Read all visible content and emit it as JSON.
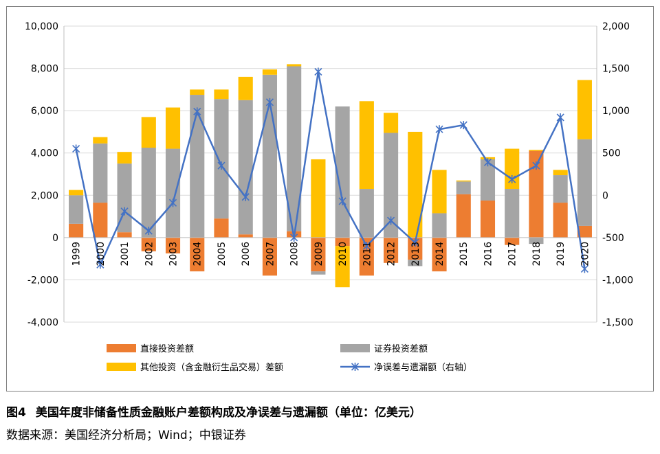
{
  "figure": {
    "number": "图4",
    "caption": "美国年度非储备性质金融账户差额构成及净误差与遗漏额（单位：亿美元）",
    "source": "数据来源：美国经济分析局；Wind；中银证券"
  },
  "colors": {
    "direct": "#ed7d31",
    "portfolio": "#a5a5a5",
    "other": "#ffc000",
    "errors": "#4472c4",
    "grid": "#d9d9d9",
    "axis": "#bfbfbf"
  },
  "chart_data": {
    "type": "bar",
    "stacked": true,
    "categories": [
      "1999",
      "2000",
      "2001",
      "2002",
      "2003",
      "2004",
      "2005",
      "2006",
      "2007",
      "2008",
      "2009",
      "2010",
      "2011",
      "2012",
      "2013",
      "2014",
      "2015",
      "2016",
      "2017",
      "2018",
      "2019",
      "2020"
    ],
    "series": [
      {
        "name": "直接投资差额",
        "axis": "left",
        "type": "bar",
        "values": [
          650,
          1650,
          250,
          -650,
          -750,
          -1600,
          900,
          150,
          -1800,
          300,
          -1600,
          -400,
          -1800,
          -1200,
          -1050,
          -1600,
          2050,
          1750,
          -350,
          4100,
          1650,
          550
        ]
      },
      {
        "name": "证券投资差额",
        "axis": "left",
        "type": "bar",
        "values": [
          1350,
          2800,
          3250,
          4250,
          4200,
          6750,
          5650,
          6350,
          7700,
          7800,
          -150,
          6200,
          2300,
          4950,
          -300,
          1150,
          600,
          1950,
          2300,
          -300,
          1300,
          4100
        ]
      },
      {
        "name": "其他投资（含金融衍生品交易）差额",
        "axis": "left",
        "type": "bar",
        "values": [
          250,
          300,
          550,
          1450,
          1950,
          250,
          450,
          1100,
          250,
          100,
          3700,
          -1950,
          4150,
          950,
          5000,
          2050,
          50,
          100,
          1900,
          50,
          250,
          2800
        ]
      },
      {
        "name": "净误差与遗漏额（右轴）",
        "axis": "right",
        "type": "line",
        "values": [
          550,
          -820,
          -190,
          -420,
          -90,
          990,
          350,
          -20,
          1100,
          -500,
          1460,
          -70,
          -600,
          -300,
          -560,
          780,
          830,
          390,
          190,
          350,
          920,
          -870
        ]
      }
    ],
    "left_axis": {
      "ylim": [
        -4000,
        10000
      ],
      "ticks": [
        -4000,
        -2000,
        0,
        2000,
        4000,
        6000,
        8000,
        10000
      ],
      "tick_labels": [
        "-4,000",
        "-2,000",
        "0",
        "2,000",
        "4,000",
        "6,000",
        "8,000",
        "10,000"
      ]
    },
    "right_axis": {
      "ylim": [
        -1500,
        2000
      ],
      "ticks": [
        -1500,
        -1000,
        -500,
        0,
        500,
        1000,
        1500,
        2000
      ],
      "tick_labels": [
        "-1,500",
        "-1,000",
        "-500",
        "0",
        "500",
        "1,000",
        "1,500",
        "2,000"
      ]
    },
    "grid": true,
    "legend_position": "bottom"
  }
}
